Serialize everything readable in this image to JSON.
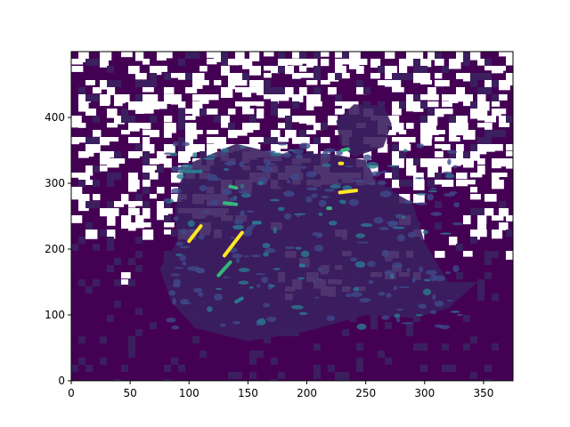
{
  "chart_data": {
    "type": "heatmap",
    "title": "",
    "xlabel": "",
    "ylabel": "",
    "xlim": [
      0,
      375
    ],
    "ylim": [
      0,
      500
    ],
    "origin": "lower",
    "grid": false,
    "colormap": "viridis",
    "x_ticks": [
      0,
      50,
      100,
      150,
      200,
      250,
      300,
      350
    ],
    "x_tick_labels": [
      "0",
      "50",
      "100",
      "150",
      "200",
      "250",
      "300",
      "350"
    ],
    "y_ticks": [
      0,
      100,
      200,
      300,
      400
    ],
    "y_tick_labels": [
      "0",
      "100",
      "200",
      "300",
      "400"
    ],
    "colors": {
      "low": "#440154",
      "dark": "#3b1f5f",
      "mid": "#3e4a89",
      "teal": "#2a7b8e",
      "green": "#35b779",
      "high": "#fde725",
      "background": "#ffffff",
      "axis": "#000000"
    },
    "description_of_content": "",
    "bright_features": [
      {
        "x0": 100,
        "y0": 212,
        "x1": 110,
        "y1": 235,
        "value": 1.0
      },
      {
        "x0": 130,
        "y0": 190,
        "x1": 145,
        "y1": 225,
        "value": 0.95
      },
      {
        "x0": 125,
        "y0": 160,
        "x1": 135,
        "y1": 180,
        "value": 0.7
      },
      {
        "x0": 228,
        "y0": 286,
        "x1": 242,
        "y1": 289,
        "value": 0.9
      },
      {
        "x0": 228,
        "y0": 330,
        "x1": 230,
        "y1": 330,
        "value": 0.9
      },
      {
        "x0": 218,
        "y0": 262,
        "x1": 220,
        "y1": 262,
        "value": 0.8
      },
      {
        "x0": 130,
        "y0": 270,
        "x1": 140,
        "y1": 268,
        "value": 0.85
      },
      {
        "x0": 135,
        "y0": 295,
        "x1": 140,
        "y1": 293,
        "value": 0.7
      },
      {
        "x0": 155,
        "y0": 240,
        "x1": 160,
        "y1": 240,
        "value": 0.6
      },
      {
        "x0": 230,
        "y0": 350,
        "x1": 235,
        "y1": 352,
        "value": 0.7
      },
      {
        "x0": 95,
        "y0": 318,
        "x1": 110,
        "y1": 318,
        "value": 0.5
      },
      {
        "x0": 195,
        "y0": 175,
        "x1": 197,
        "y1": 175,
        "value": 0.6
      },
      {
        "x0": 140,
        "y0": 120,
        "x1": 145,
        "y1": 125,
        "value": 0.5
      }
    ]
  }
}
